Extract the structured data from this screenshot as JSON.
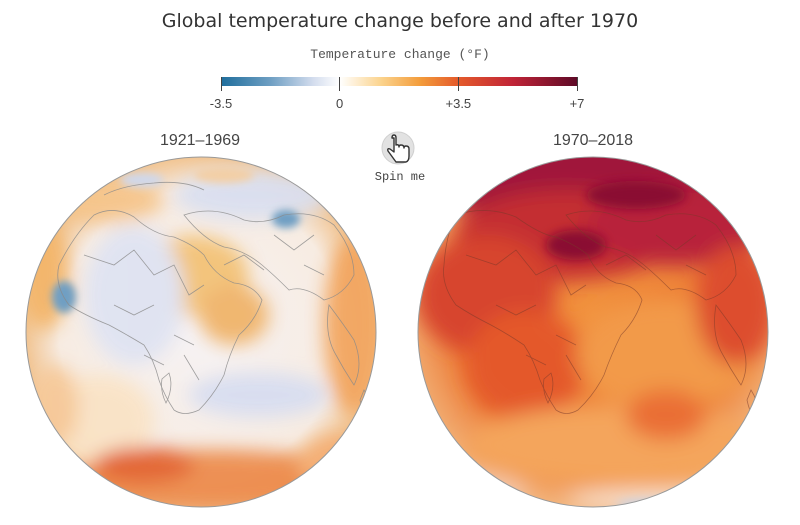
{
  "title": "Global temperature change before and after 1970",
  "legend": {
    "title": "Temperature change (°F)",
    "ticks": [
      {
        "label": "-3.5",
        "value": -3.5
      },
      {
        "label": "0",
        "value": 0
      },
      {
        "label": "+3.5",
        "value": 3.5
      },
      {
        "label": "+7",
        "value": 7
      }
    ],
    "range": [
      -3.5,
      7
    ],
    "colors": {
      "cold": "#1f6e9c",
      "neutral": "#ffffff",
      "warm": "#f6a23c",
      "hot": "#c8362a",
      "hottest": "#6b0a2a"
    }
  },
  "spin_control": {
    "label": "Spin me",
    "icon": "hand-pointer-icon"
  },
  "globes": [
    {
      "period": "1921–1969",
      "view": "Africa and Indian Ocean centered"
    },
    {
      "period": "1970–2018",
      "view": "Africa and Indian Ocean centered"
    }
  ]
}
